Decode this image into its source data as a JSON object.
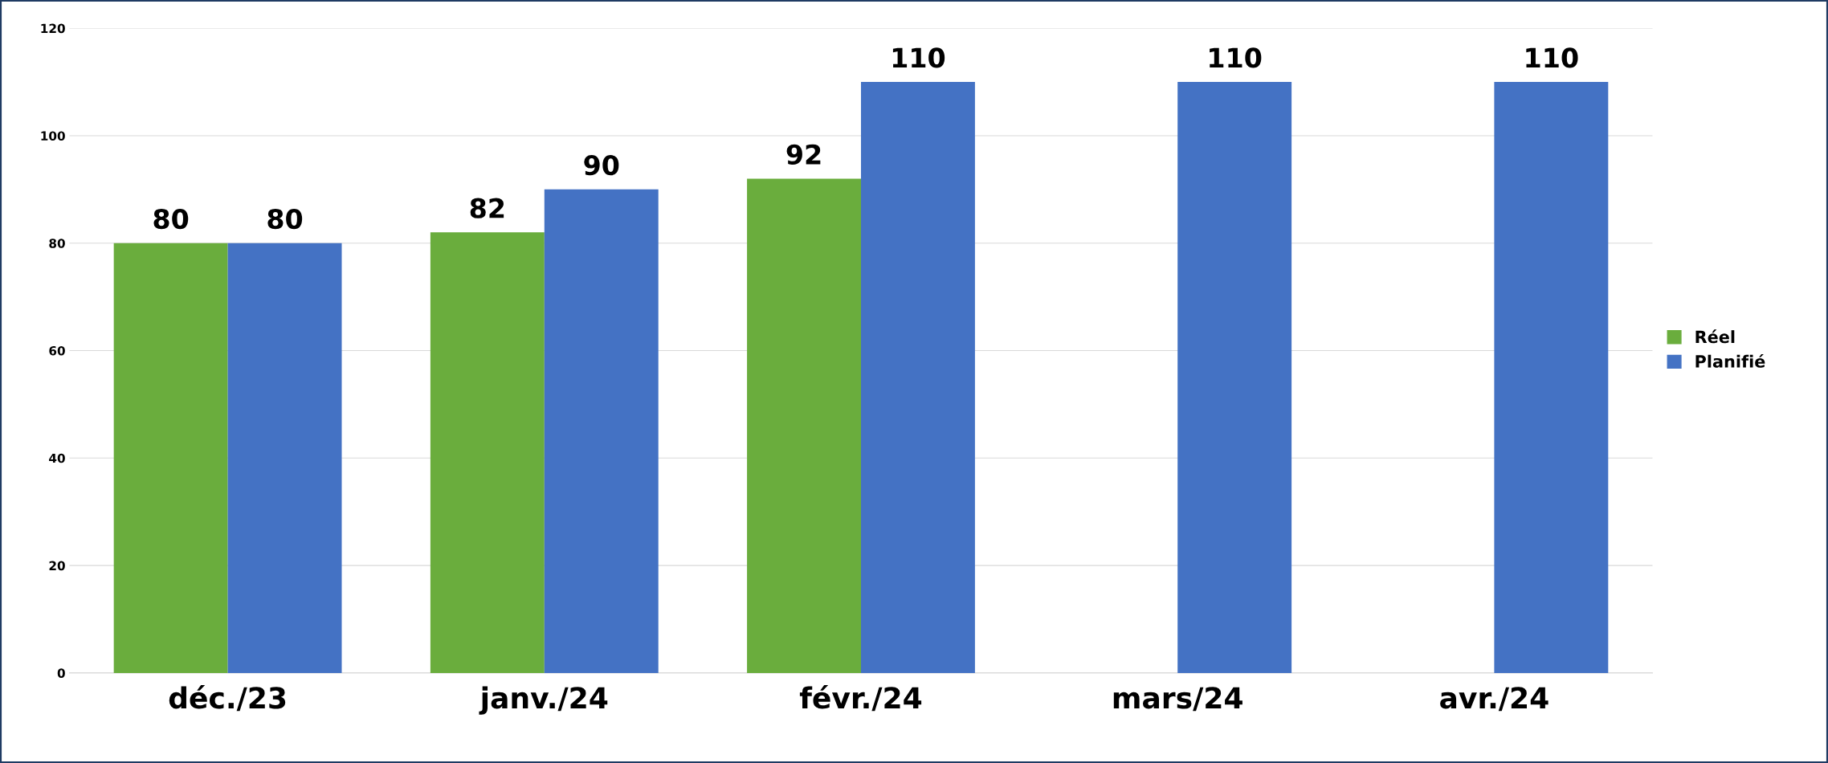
{
  "chart_data": {
    "type": "bar",
    "categories": [
      "déc./23",
      "janv./24",
      "févr./24",
      "mars/24",
      "avr./24"
    ],
    "series": [
      {
        "name": "Réel",
        "color": "#6aad3d",
        "values": [
          80,
          82,
          92,
          null,
          null
        ]
      },
      {
        "name": "Planifié",
        "color": "#4472c4",
        "values": [
          80,
          90,
          110,
          110,
          110
        ]
      }
    ],
    "ylim": [
      0,
      120
    ],
    "yticks": [
      0,
      20,
      40,
      60,
      80,
      100,
      120
    ],
    "grid": "y",
    "legend": "right",
    "data_labels": true
  }
}
